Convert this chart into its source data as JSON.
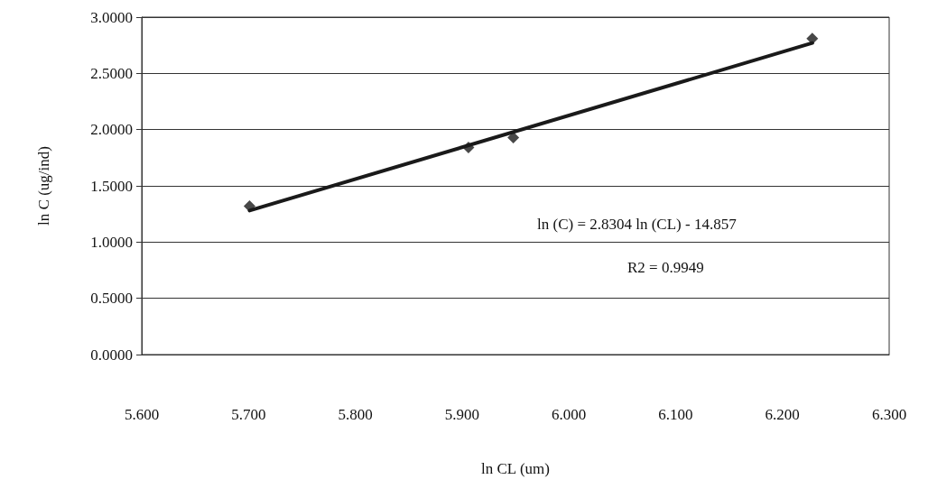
{
  "chart_data": {
    "type": "scatter",
    "xlabel": "ln CL (um)",
    "ylabel": "ln C (ug/ind)",
    "xlim": [
      5.6,
      6.3
    ],
    "xticks": [
      {
        "value": 5.6,
        "label": "5.600"
      },
      {
        "value": 5.7,
        "label": "5.700"
      },
      {
        "value": 5.8,
        "label": "5.800"
      },
      {
        "value": 5.9,
        "label": "5.900"
      },
      {
        "value": 6.0,
        "label": "6.000"
      },
      {
        "value": 6.1,
        "label": "6.100"
      },
      {
        "value": 6.2,
        "label": "6.200"
      },
      {
        "value": 6.3,
        "label": "6.300"
      }
    ],
    "ylim": [
      0,
      3
    ],
    "yticks": [
      {
        "value": 0,
        "label": "0.0000"
      },
      {
        "value": 0.5,
        "label": "0.5000"
      },
      {
        "value": 1,
        "label": "1.0000"
      },
      {
        "value": 1.5,
        "label": "1.5000"
      },
      {
        "value": 2,
        "label": "2.0000"
      },
      {
        "value": 2.5,
        "label": "2.5000"
      },
      {
        "value": 3,
        "label": "3.0000"
      }
    ],
    "grid": "y",
    "series": [
      {
        "x": [
          5.701,
          5.906,
          5.948,
          6.228
        ],
        "values": [
          1.32,
          1.84,
          1.93,
          2.81
        ],
        "color": "#1a1a1a",
        "marker": "diamond"
      },
      {
        "type": "line",
        "x": [
          5.701,
          6.228
        ],
        "values": [
          1.28,
          2.77
        ],
        "color": "#1a1a1a",
        "marker": "none",
        "line_style": "solid"
      }
    ],
    "annotations": [
      "ln (C) = 2.8304 ln (CL) - 14.857",
      "R2 = 0.9949"
    ]
  }
}
